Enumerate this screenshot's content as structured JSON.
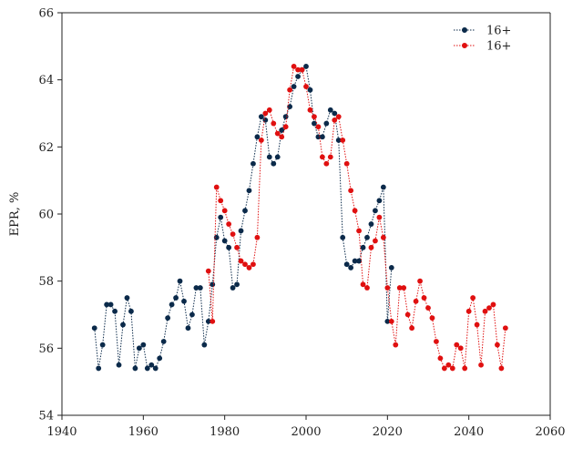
{
  "chart_data": {
    "type": "scatter",
    "ylabel": "EPR, %",
    "xlim": [
      1940,
      2060
    ],
    "ylim": [
      54,
      66
    ],
    "x_ticks": [
      1940,
      1960,
      1980,
      2000,
      2020,
      2040,
      2060
    ],
    "y_ticks": [
      54,
      56,
      58,
      60,
      62,
      64,
      66
    ],
    "grid": false,
    "legend_position": "top-right",
    "series": [
      {
        "name": "16+",
        "color": "#0b2a4a",
        "line_style": "dotted",
        "x": [
          1948,
          1949,
          1950,
          1951,
          1952,
          1953,
          1954,
          1955,
          1956,
          1957,
          1958,
          1959,
          1960,
          1961,
          1962,
          1963,
          1964,
          1965,
          1966,
          1967,
          1968,
          1969,
          1970,
          1971,
          1972,
          1973,
          1974,
          1975,
          1976,
          1977,
          1978,
          1979,
          1980,
          1981,
          1982,
          1983,
          1984,
          1985,
          1986,
          1987,
          1988,
          1989,
          1990,
          1991,
          1992,
          1993,
          1994,
          1995,
          1996,
          1997,
          1998,
          1999,
          2000,
          2001,
          2002,
          2003,
          2004,
          2005,
          2006,
          2007,
          2008,
          2009,
          2010,
          2011,
          2012,
          2013,
          2014,
          2015,
          2016,
          2017,
          2018,
          2019,
          2020,
          2021
        ],
        "y": [
          56.6,
          55.4,
          56.1,
          57.3,
          57.3,
          57.1,
          55.5,
          56.7,
          57.5,
          57.1,
          55.4,
          56.0,
          56.1,
          55.4,
          55.5,
          55.4,
          55.7,
          56.2,
          56.9,
          57.3,
          57.5,
          58.0,
          57.4,
          56.6,
          57.0,
          57.8,
          57.8,
          56.1,
          56.8,
          57.9,
          59.3,
          59.9,
          59.2,
          59.0,
          57.8,
          57.9,
          59.5,
          60.1,
          60.7,
          61.5,
          62.3,
          62.9,
          62.8,
          61.7,
          61.5,
          61.7,
          62.5,
          62.9,
          63.2,
          63.8,
          64.1,
          64.3,
          64.4,
          63.7,
          62.7,
          62.3,
          62.3,
          62.7,
          63.1,
          63.0,
          62.2,
          59.3,
          58.5,
          58.4,
          58.6,
          58.6,
          59.0,
          59.3,
          59.7,
          60.1,
          60.4,
          60.8,
          56.8,
          58.4
        ]
      },
      {
        "name": "16+",
        "color": "#e01010",
        "line_style": "dotted",
        "x": [
          1976,
          1977,
          1978,
          1979,
          1980,
          1981,
          1982,
          1983,
          1984,
          1985,
          1986,
          1987,
          1988,
          1989,
          1990,
          1991,
          1992,
          1993,
          1994,
          1995,
          1996,
          1997,
          1998,
          1999,
          2000,
          2001,
          2002,
          2003,
          2004,
          2005,
          2006,
          2007,
          2008,
          2009,
          2010,
          2011,
          2012,
          2013,
          2014,
          2015,
          2016,
          2017,
          2018,
          2019,
          2020,
          2021,
          2022,
          2023,
          2024,
          2025,
          2026,
          2027,
          2028,
          2029,
          2030,
          2031,
          2032,
          2033,
          2034,
          2035,
          2036,
          2037,
          2038,
          2039,
          2040,
          2041,
          2042,
          2043,
          2044,
          2045,
          2046,
          2047,
          2048,
          2049
        ],
        "y": [
          58.3,
          56.8,
          60.8,
          60.4,
          60.1,
          59.7,
          59.4,
          59.0,
          58.6,
          58.5,
          58.4,
          58.5,
          59.3,
          62.2,
          63.0,
          63.1,
          62.7,
          62.4,
          62.3,
          62.6,
          63.7,
          64.4,
          64.3,
          64.3,
          63.8,
          63.1,
          62.9,
          62.6,
          61.7,
          61.5,
          61.7,
          62.8,
          62.9,
          62.2,
          61.5,
          60.7,
          60.1,
          59.5,
          57.9,
          57.8,
          59.0,
          59.2,
          59.9,
          59.3,
          57.8,
          56.8,
          56.1,
          57.8,
          57.8,
          57.0,
          56.6,
          57.4,
          58.0,
          57.5,
          57.2,
          56.9,
          56.2,
          55.7,
          55.4,
          55.5,
          55.4,
          56.1,
          56.0,
          55.4,
          57.1,
          57.5,
          56.7,
          55.5,
          57.1,
          57.2,
          57.3,
          56.1,
          55.4,
          56.6
        ]
      }
    ]
  }
}
